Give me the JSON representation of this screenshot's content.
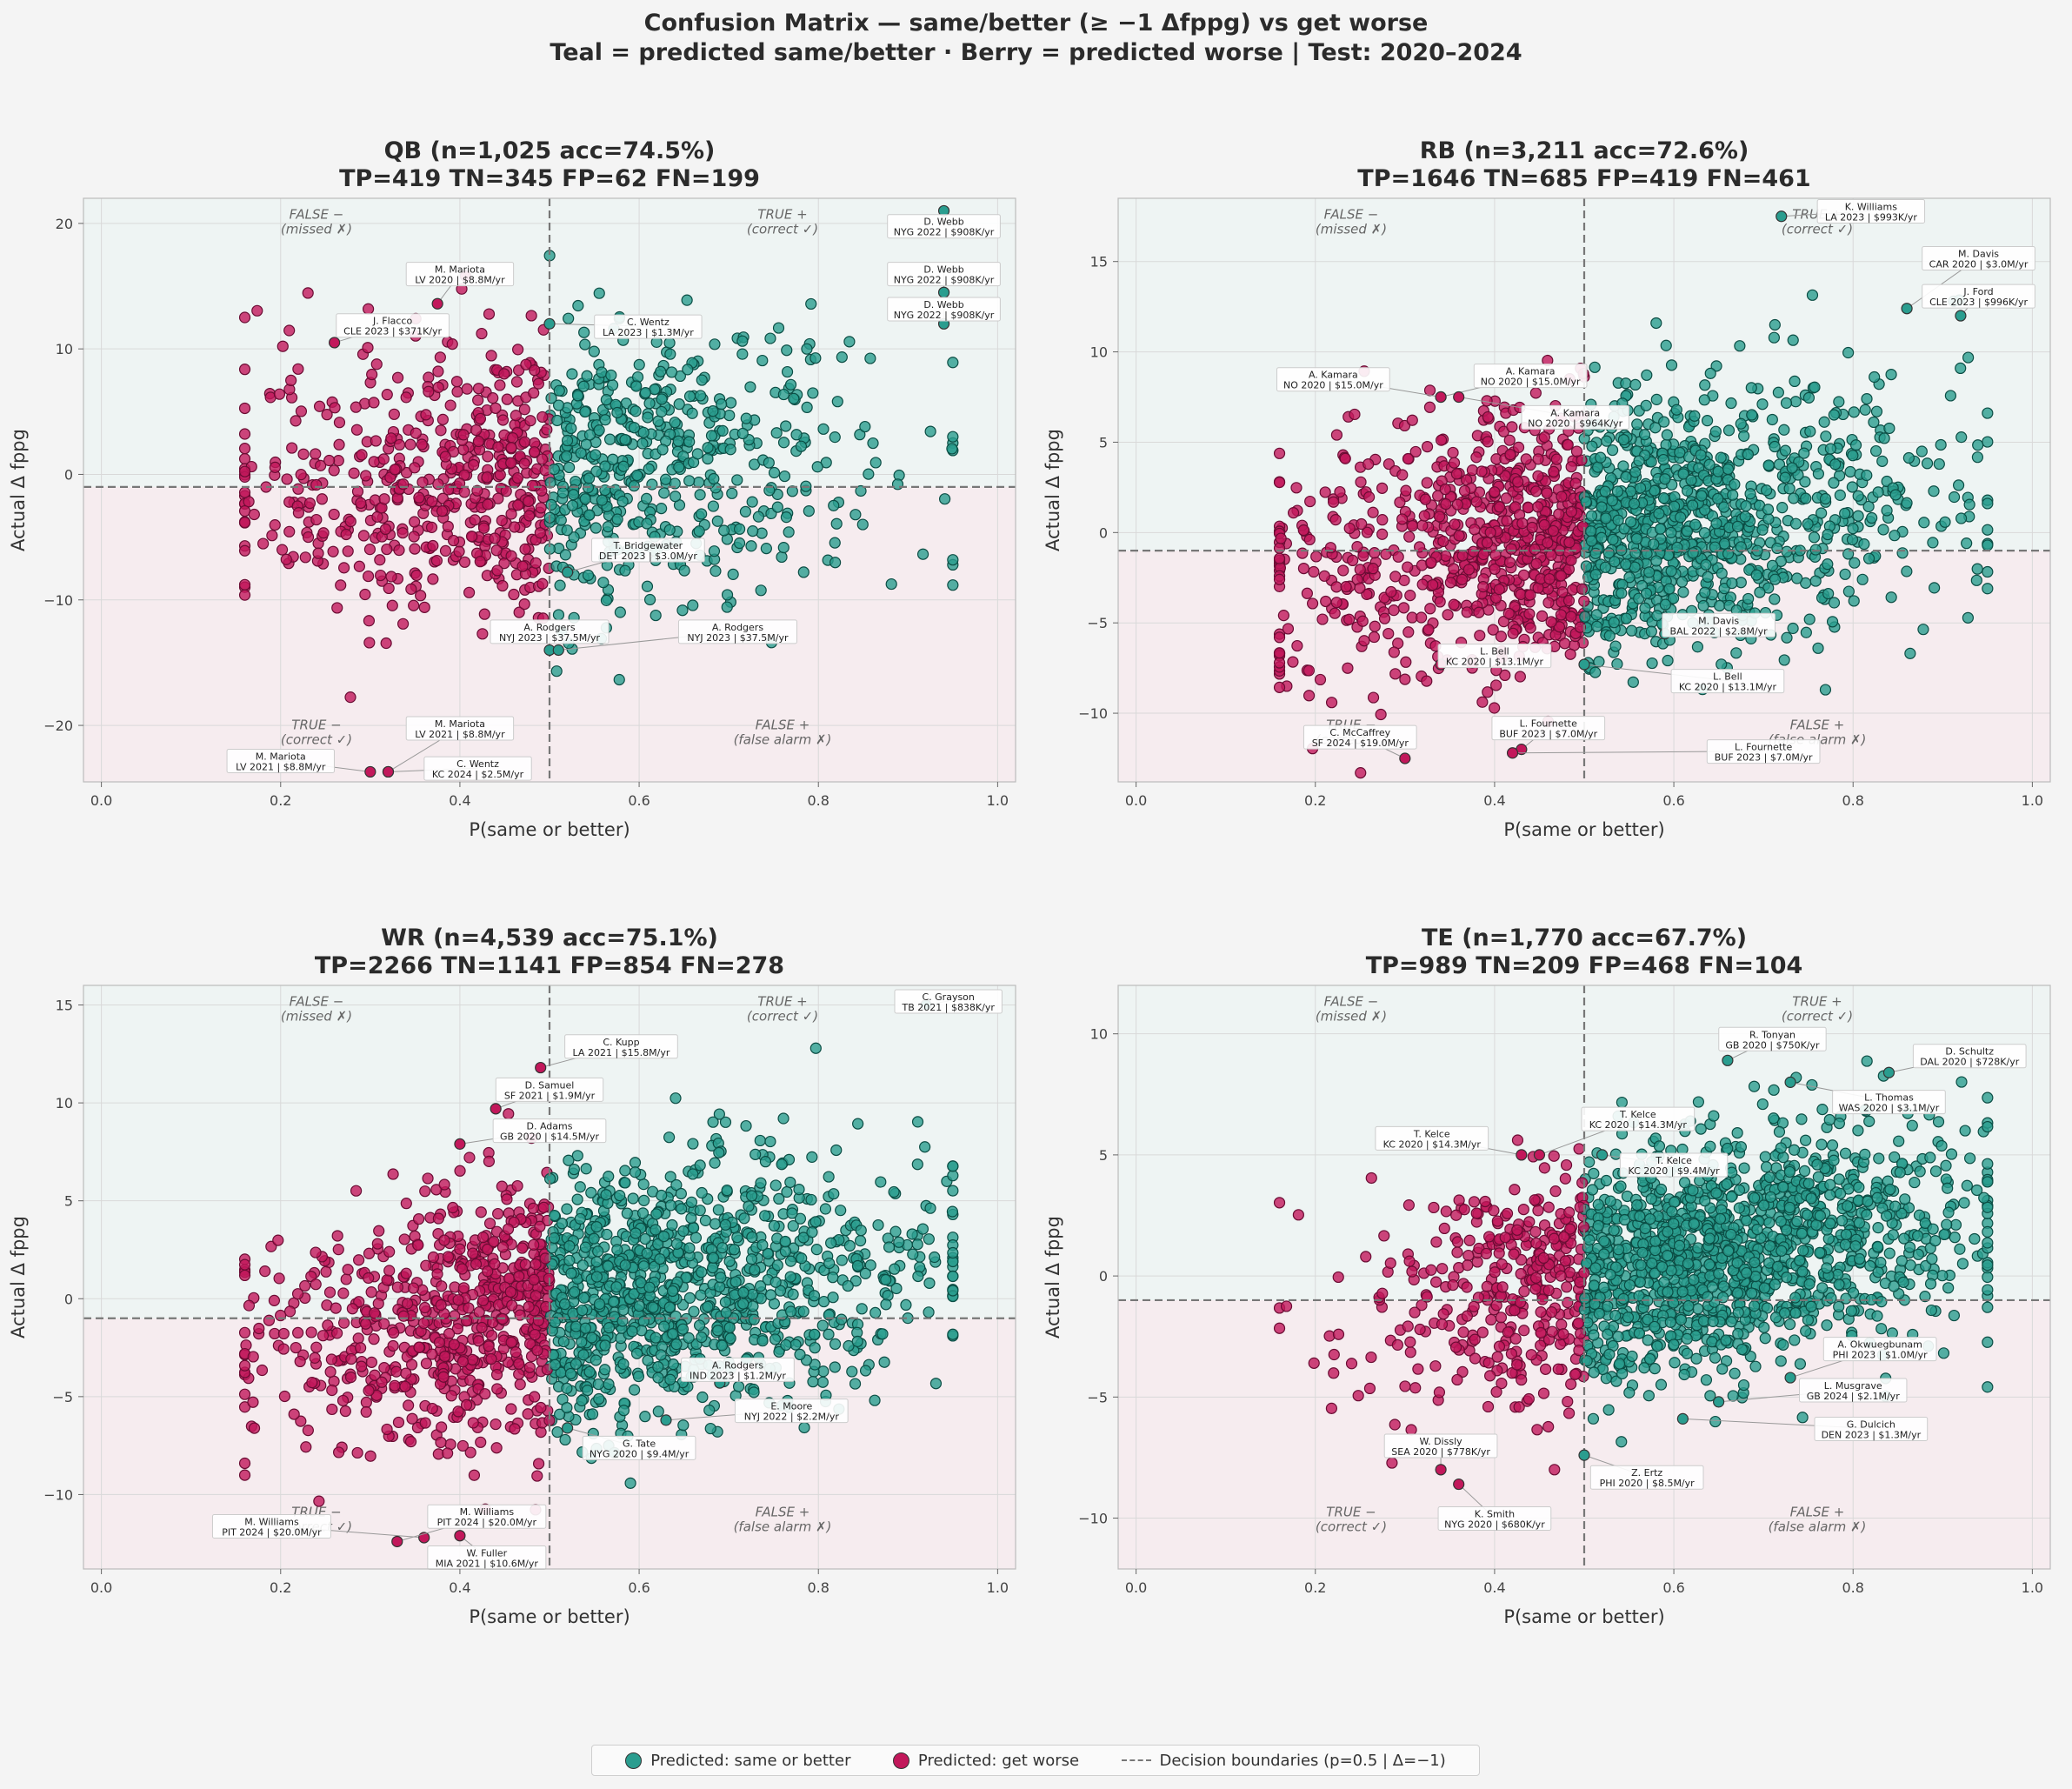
{
  "figure": {
    "title_line1": "Confusion Matrix — same/better (≥ −1 Δfppg) vs get worse",
    "title_line2": "Teal = predicted same/better  ·  Berry = predicted worse  |  Test: 2020–2024"
  },
  "colors": {
    "teal": "#2a9d8f",
    "berry": "#c2185b",
    "top_bg": "#eef4f3",
    "bottom_bg": "#f6ecef",
    "boundary": "#777777"
  },
  "quadrant_labels": {
    "false_neg": [
      "FALSE −",
      "(missed ✗)"
    ],
    "true_pos": [
      "TRUE +",
      "(correct ✓)"
    ],
    "true_neg": [
      "TRUE −",
      "(correct ✓)"
    ],
    "false_pos": [
      "FALSE +",
      "(false alarm ✗)"
    ]
  },
  "legend": {
    "teal_label": "Predicted: same or better",
    "berry_label": "Predicted: get worse",
    "boundary_label": "Decision boundaries (p=0.5 | Δ=−1)"
  },
  "chart_data": [
    {
      "type": "scatter",
      "title_line1": "QB  (n=1,025  acc=74.5%)",
      "title_line2": "TP=419 TN=345 FP=62 FN=199",
      "xlabel": "P(same or better)",
      "ylabel": "Actual Δ fppg",
      "xlim": [
        -0.02,
        1.02
      ],
      "ylim": [
        -24.5,
        22
      ],
      "xticks": [
        0.0,
        0.2,
        0.4,
        0.6,
        0.8,
        1.0
      ],
      "yticks": [
        -20,
        -10,
        0,
        10,
        20
      ],
      "threshold_x": 0.5,
      "threshold_y": -1,
      "n": 1025,
      "cluster_center": [
        0.5,
        0
      ],
      "spread": [
        0.17,
        5.5
      ],
      "annotations": [
        {
          "x": 0.94,
          "y": 21.0,
          "line1": "D. Webb",
          "line2": "NYG 2022 | $908K/yr",
          "tx": 0.94,
          "ty": 19.8
        },
        {
          "x": 0.94,
          "y": 14.5,
          "line1": "D. Webb",
          "line2": "NYG 2022 | $908K/yr",
          "tx": 0.94,
          "ty": 16.0
        },
        {
          "x": 0.94,
          "y": 12.0,
          "line1": "D. Webb",
          "line2": "NYG 2022 | $908K/yr",
          "tx": 0.94,
          "ty": 13.2
        },
        {
          "x": 0.375,
          "y": 13.6,
          "line1": "M. Mariota",
          "line2": "LV 2020 | $8.8M/yr",
          "tx": 0.4,
          "ty": 16.0
        },
        {
          "x": 0.26,
          "y": 10.5,
          "line1": "J. Flacco",
          "line2": "CLE 2023 | $371K/yr",
          "tx": 0.325,
          "ty": 11.9
        },
        {
          "x": 0.5,
          "y": 12.0,
          "line1": "C. Wentz",
          "line2": "LA 2023 | $1.3M/yr",
          "tx": 0.61,
          "ty": 11.8
        },
        {
          "x": 0.52,
          "y": -7.8,
          "line1": "T. Bridgewater",
          "line2": "DET 2023 | $3.0M/yr",
          "tx": 0.61,
          "ty": -6.0
        },
        {
          "x": 0.5,
          "y": -14.0,
          "line1": "A. Rodgers",
          "line2": "NYJ 2023 | $37.5M/yr",
          "tx": 0.5,
          "ty": -12.5
        },
        {
          "x": 0.51,
          "y": -14.0,
          "line1": "A. Rodgers",
          "line2": "NYJ 2023 | $37.5M/yr",
          "tx": 0.71,
          "ty": -12.5
        },
        {
          "x": 0.32,
          "y": -23.7,
          "line1": "M. Mariota",
          "line2": "LV 2021 | $8.8M/yr",
          "tx": 0.4,
          "ty": -20.2
        },
        {
          "x": 0.3,
          "y": -23.7,
          "line1": "M. Mariota",
          "line2": "LV 2021 | $8.8M/yr",
          "tx": 0.2,
          "ty": -22.8
        },
        {
          "x": 0.32,
          "y": -23.7,
          "line1": "C. Wentz",
          "line2": "KC 2024 | $2.5M/yr",
          "tx": 0.42,
          "ty": -23.4
        }
      ]
    },
    {
      "type": "scatter",
      "title_line1": "RB  (n=3,211  acc=72.6%)",
      "title_line2": "TP=1646 TN=685 FP=419 FN=461",
      "xlabel": "P(same or better)",
      "ylabel": "Actual Δ fppg",
      "xlim": [
        -0.02,
        1.02
      ],
      "ylim": [
        -13.8,
        18.5
      ],
      "xticks": [
        0.0,
        0.2,
        0.4,
        0.6,
        0.8,
        1.0
      ],
      "yticks": [
        -10,
        -5,
        0,
        5,
        10,
        15
      ],
      "threshold_x": 0.5,
      "threshold_y": -1,
      "n": 3211,
      "cluster_center": [
        0.52,
        0
      ],
      "spread": [
        0.17,
        3.6
      ],
      "annotations": [
        {
          "x": 0.72,
          "y": 17.5,
          "line1": "K. Williams",
          "line2": "LA 2023 | $993K/yr",
          "tx": 0.82,
          "ty": 17.8
        },
        {
          "x": 0.86,
          "y": 12.4,
          "line1": "M. Davis",
          "line2": "CAR 2020 | $3.0M/yr",
          "tx": 0.94,
          "ty": 15.2
        },
        {
          "x": 0.92,
          "y": 12.0,
          "line1": "J. Ford",
          "line2": "CLE 2023 | $996K/yr",
          "tx": 0.94,
          "ty": 13.1
        },
        {
          "x": 0.34,
          "y": 7.5,
          "line1": "A. Kamara",
          "line2": "NO 2020 | $15.0M/yr",
          "tx": 0.22,
          "ty": 8.5
        },
        {
          "x": 0.34,
          "y": 7.5,
          "line1": "A. Kamara",
          "line2": "NO 2020 | $15.0M/yr",
          "tx": 0.44,
          "ty": 8.7
        },
        {
          "x": 0.36,
          "y": 7.5,
          "line1": "A. Kamara",
          "line2": "NO 2020 | $964K/yr",
          "tx": 0.49,
          "ty": 6.4
        },
        {
          "x": 0.59,
          "y": -5.6,
          "line1": "M. Davis",
          "line2": "BAL 2022 | $2.8M/yr",
          "tx": 0.65,
          "ty": -5.1
        },
        {
          "x": 0.34,
          "y": -7.3,
          "line1": "L. Bell",
          "line2": "KC 2020 | $13.1M/yr",
          "tx": 0.4,
          "ty": -6.8
        },
        {
          "x": 0.5,
          "y": -7.3,
          "line1": "L. Bell",
          "line2": "KC 2020 | $13.1M/yr",
          "tx": 0.66,
          "ty": -8.2
        },
        {
          "x": 0.3,
          "y": -12.5,
          "line1": "C. McCaffrey",
          "line2": "SF 2024 | $19.0M/yr",
          "tx": 0.25,
          "ty": -11.3
        },
        {
          "x": 0.43,
          "y": -12.0,
          "line1": "L. Fournette",
          "line2": "BUF 2023 | $7.0M/yr",
          "tx": 0.46,
          "ty": -10.8
        },
        {
          "x": 0.42,
          "y": -12.2,
          "line1": "L. Fournette",
          "line2": "BUF 2023 | $7.0M/yr",
          "tx": 0.7,
          "ty": -12.1
        }
      ]
    },
    {
      "type": "scatter",
      "title_line1": "WR  (n=4,539  acc=75.1%)",
      "title_line2": "TP=2266 TN=1141 FP=854 FN=278",
      "xlabel": "P(same or better)",
      "ylabel": "Actual Δ fppg",
      "xlim": [
        -0.02,
        1.02
      ],
      "ylim": [
        -13.8,
        16
      ],
      "xticks": [
        0.0,
        0.2,
        0.4,
        0.6,
        0.8,
        1.0
      ],
      "yticks": [
        -10,
        -5,
        0,
        5,
        10,
        15
      ],
      "threshold_x": 0.5,
      "threshold_y": -1,
      "n": 4539,
      "cluster_center": [
        0.55,
        -0.5
      ],
      "spread": [
        0.17,
        3.3
      ],
      "annotations": [
        {
          "x": 0.92,
          "y": 15.0,
          "line1": "C. Grayson",
          "line2": "TB 2021 | $838K/yr",
          "tx": 0.945,
          "ty": 15.2
        },
        {
          "x": 0.49,
          "y": 11.8,
          "line1": "C. Kupp",
          "line2": "LA 2021 | $15.8M/yr",
          "tx": 0.58,
          "ty": 12.9
        },
        {
          "x": 0.44,
          "y": 9.7,
          "line1": "D. Samuel",
          "line2": "SF 2021 | $1.9M/yr",
          "tx": 0.5,
          "ty": 10.7
        },
        {
          "x": 0.4,
          "y": 7.9,
          "line1": "D. Adams",
          "line2": "GB 2020 | $14.5M/yr",
          "tx": 0.5,
          "ty": 8.6
        },
        {
          "x": 0.63,
          "y": -6.2,
          "line1": "E. Moore",
          "line2": "NYJ 2022 | $2.2M/yr",
          "tx": 0.77,
          "ty": -5.7
        },
        {
          "x": 0.69,
          "y": -4.3,
          "line1": "A. Rodgers",
          "line2": "IND 2023 | $1.2M/yr",
          "tx": 0.71,
          "ty": -3.6
        },
        {
          "x": 0.52,
          "y": -6.6,
          "line1": "G. Tate",
          "line2": "NYG 2020 | $9.4M/yr",
          "tx": 0.6,
          "ty": -7.6
        },
        {
          "x": 0.36,
          "y": -12.2,
          "line1": "M. Williams",
          "line2": "PIT 2024 | $20.0M/yr",
          "tx": 0.19,
          "ty": -11.6
        },
        {
          "x": 0.33,
          "y": -12.4,
          "line1": "M. Williams",
          "line2": "PIT 2024 | $20.0M/yr",
          "tx": 0.43,
          "ty": -11.1
        },
        {
          "x": 0.4,
          "y": -12.1,
          "line1": "W. Fuller",
          "line2": "MIA 2021 | $10.6M/yr",
          "tx": 0.43,
          "ty": -13.2
        }
      ]
    },
    {
      "type": "scatter",
      "title_line1": "TE  (n=1,770  acc=67.7%)",
      "title_line2": "TP=989 TN=209 FP=468 FN=104",
      "xlabel": "P(same or better)",
      "ylabel": "Actual Δ fppg",
      "xlim": [
        -0.02,
        1.02
      ],
      "ylim": [
        -12.1,
        12
      ],
      "xticks": [
        0.0,
        0.2,
        0.4,
        0.6,
        0.8,
        1.0
      ],
      "yticks": [
        -10,
        -5,
        0,
        5,
        10
      ],
      "threshold_x": 0.5,
      "threshold_y": -1,
      "n": 1770,
      "cluster_center": [
        0.62,
        0
      ],
      "spread": [
        0.15,
        2.4
      ],
      "annotations": [
        {
          "x": 0.66,
          "y": 8.9,
          "line1": "R. Tonyan",
          "line2": "GB 2020 | $750K/yr",
          "tx": 0.71,
          "ty": 9.8
        },
        {
          "x": 0.84,
          "y": 8.4,
          "line1": "D. Schultz",
          "line2": "DAL 2020 | $728K/yr",
          "tx": 0.93,
          "ty": 9.1
        },
        {
          "x": 0.73,
          "y": 8.0,
          "line1": "L. Thomas",
          "line2": "WAS 2020 | $3.1M/yr",
          "tx": 0.84,
          "ty": 7.2
        },
        {
          "x": 0.43,
          "y": 5.0,
          "line1": "T. Kelce",
          "line2": "KC 2020 | $14.3M/yr",
          "tx": 0.33,
          "ty": 5.7
        },
        {
          "x": 0.45,
          "y": 5.0,
          "line1": "T. Kelce",
          "line2": "KC 2020 | $14.3M/yr",
          "tx": 0.56,
          "ty": 6.5
        },
        {
          "x": 0.52,
          "y": 5.0,
          "line1": "T. Kelce",
          "line2": "KC 2020 | $9.4M/yr",
          "tx": 0.6,
          "ty": 4.6
        },
        {
          "x": 0.73,
          "y": -4.2,
          "line1": "A. Okwuegbunam",
          "line2": "PHI 2023 | $1.0M/yr",
          "tx": 0.83,
          "ty": -3.0
        },
        {
          "x": 0.65,
          "y": -5.2,
          "line1": "L. Musgrave",
          "line2": "GB 2024 | $2.1M/yr",
          "tx": 0.8,
          "ty": -4.7
        },
        {
          "x": 0.61,
          "y": -5.9,
          "line1": "G. Dulcich",
          "line2": "DEN 2023 | $1.3M/yr",
          "tx": 0.82,
          "ty": -6.3
        },
        {
          "x": 0.34,
          "y": -8.0,
          "line1": "W. Dissly",
          "line2": "SEA 2020 | $778K/yr",
          "tx": 0.34,
          "ty": -7.0
        },
        {
          "x": 0.5,
          "y": -7.4,
          "line1": "Z. Ertz",
          "line2": "PHI 2020 | $8.5M/yr",
          "tx": 0.57,
          "ty": -8.3
        },
        {
          "x": 0.36,
          "y": -8.6,
          "line1": "K. Smith",
          "line2": "NYG 2020 | $680K/yr",
          "tx": 0.4,
          "ty": -10.0
        }
      ]
    }
  ]
}
